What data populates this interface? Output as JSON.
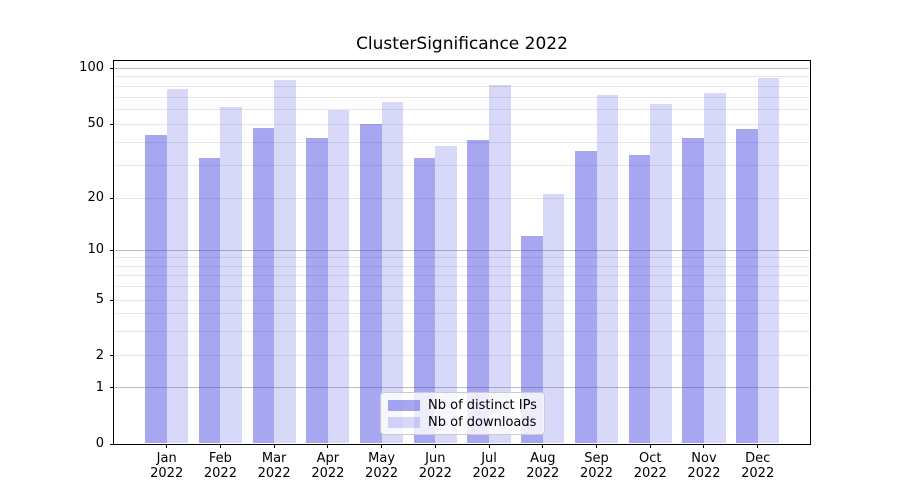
{
  "title": "ClusterSignificance 2022",
  "chart_data": {
    "type": "bar",
    "title": "ClusterSignificance 2022",
    "categories": [
      "Jan 2022",
      "Feb 2022",
      "Mar 2022",
      "Apr 2022",
      "May 2022",
      "Jun 2022",
      "Jul 2022",
      "Aug 2022",
      "Sep 2022",
      "Oct 2022",
      "Nov 2022",
      "Dec 2022"
    ],
    "months": [
      "Jan",
      "Feb",
      "Mar",
      "Apr",
      "May",
      "Jun",
      "Jul",
      "Aug",
      "Sep",
      "Oct",
      "Nov",
      "Dec"
    ],
    "year": "2022",
    "series": [
      {
        "name": "Nb of distinct IPs",
        "color": "rgba(59,59,224,0.45)",
        "values": [
          44,
          33,
          48,
          42,
          50,
          33,
          41,
          12,
          36,
          34,
          42,
          47
        ]
      },
      {
        "name": "Nb of downloads",
        "color": "rgba(59,59,224,0.20)",
        "values": [
          77,
          62,
          87,
          60,
          66,
          38,
          81,
          21,
          72,
          64,
          74,
          89
        ]
      }
    ],
    "yscale": "symlog",
    "ylim": [
      0,
      110
    ],
    "yticks": [
      100,
      50,
      20,
      10,
      5,
      2,
      1,
      0
    ],
    "major_gridlines": [
      1,
      10,
      100
    ],
    "minor_gridlines": [
      2,
      3,
      4,
      5,
      6,
      7,
      8,
      9,
      20,
      30,
      40,
      50,
      60,
      70,
      80,
      90
    ],
    "legend_position": "lower center",
    "grid": true,
    "colors": {
      "bar_distinct_ips": "#a7a7f1",
      "bar_downloads": "#d8d8f7",
      "major_grid": "#bdbdbd",
      "minor_grid": "#e6e6e6",
      "axis": "#000000",
      "legend_border": "#cccccc",
      "background": "#ffffff"
    }
  }
}
